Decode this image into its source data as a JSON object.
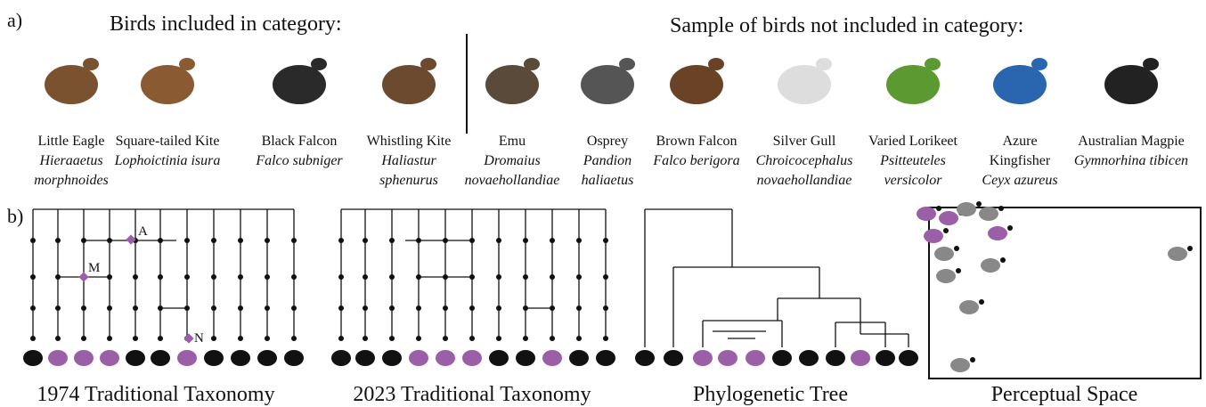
{
  "panel_a": {
    "label": "a)",
    "included_heading": "Birds included in category:",
    "excluded_heading": "Sample of birds not included in category:",
    "included": [
      {
        "name_lines": [
          "Little Eagle"
        ],
        "scientific_lines": [
          "Hieraaetus",
          "morphnoides"
        ]
      },
      {
        "name_lines": [
          "Square-tailed Kite"
        ],
        "scientific_lines": [
          "Lophoictinia isura"
        ]
      },
      {
        "name_lines": [
          "Black Falcon"
        ],
        "scientific_lines": [
          "Falco subniger"
        ]
      },
      {
        "name_lines": [
          "Whistling Kite"
        ],
        "scientific_lines": [
          "Haliastur",
          "sphenurus"
        ]
      }
    ],
    "excluded": [
      {
        "name_lines": [
          "Emu"
        ],
        "scientific_lines": [
          "Dromaius",
          "novaehollandiae"
        ]
      },
      {
        "name_lines": [
          "Osprey"
        ],
        "scientific_lines": [
          "Pandion",
          "haliaetus"
        ]
      },
      {
        "name_lines": [
          "Brown Falcon"
        ],
        "scientific_lines": [
          "Falco berigora"
        ]
      },
      {
        "name_lines": [
          "Silver Gull"
        ],
        "scientific_lines": [
          "Chroicocephalus",
          "novaehollandiae"
        ]
      },
      {
        "name_lines": [
          "Varied Lorikeet"
        ],
        "scientific_lines": [
          "Psitteuteles",
          "versicolor"
        ]
      },
      {
        "name_lines": [
          "Azure",
          "Kingfisher"
        ],
        "scientific_lines": [
          "Ceyx azureus"
        ]
      },
      {
        "name_lines": [
          "Australian Magpie"
        ],
        "scientific_lines": [
          "Gymnorhina tibicen"
        ]
      }
    ]
  },
  "panel_b": {
    "label": "b)",
    "captions": [
      "1974 Traditional Taxonomy",
      "2023 Traditional Taxonomy",
      "Phylogenetic Tree",
      "Perceptual Space"
    ],
    "node_labels": [
      "A",
      "M",
      "N"
    ]
  }
}
